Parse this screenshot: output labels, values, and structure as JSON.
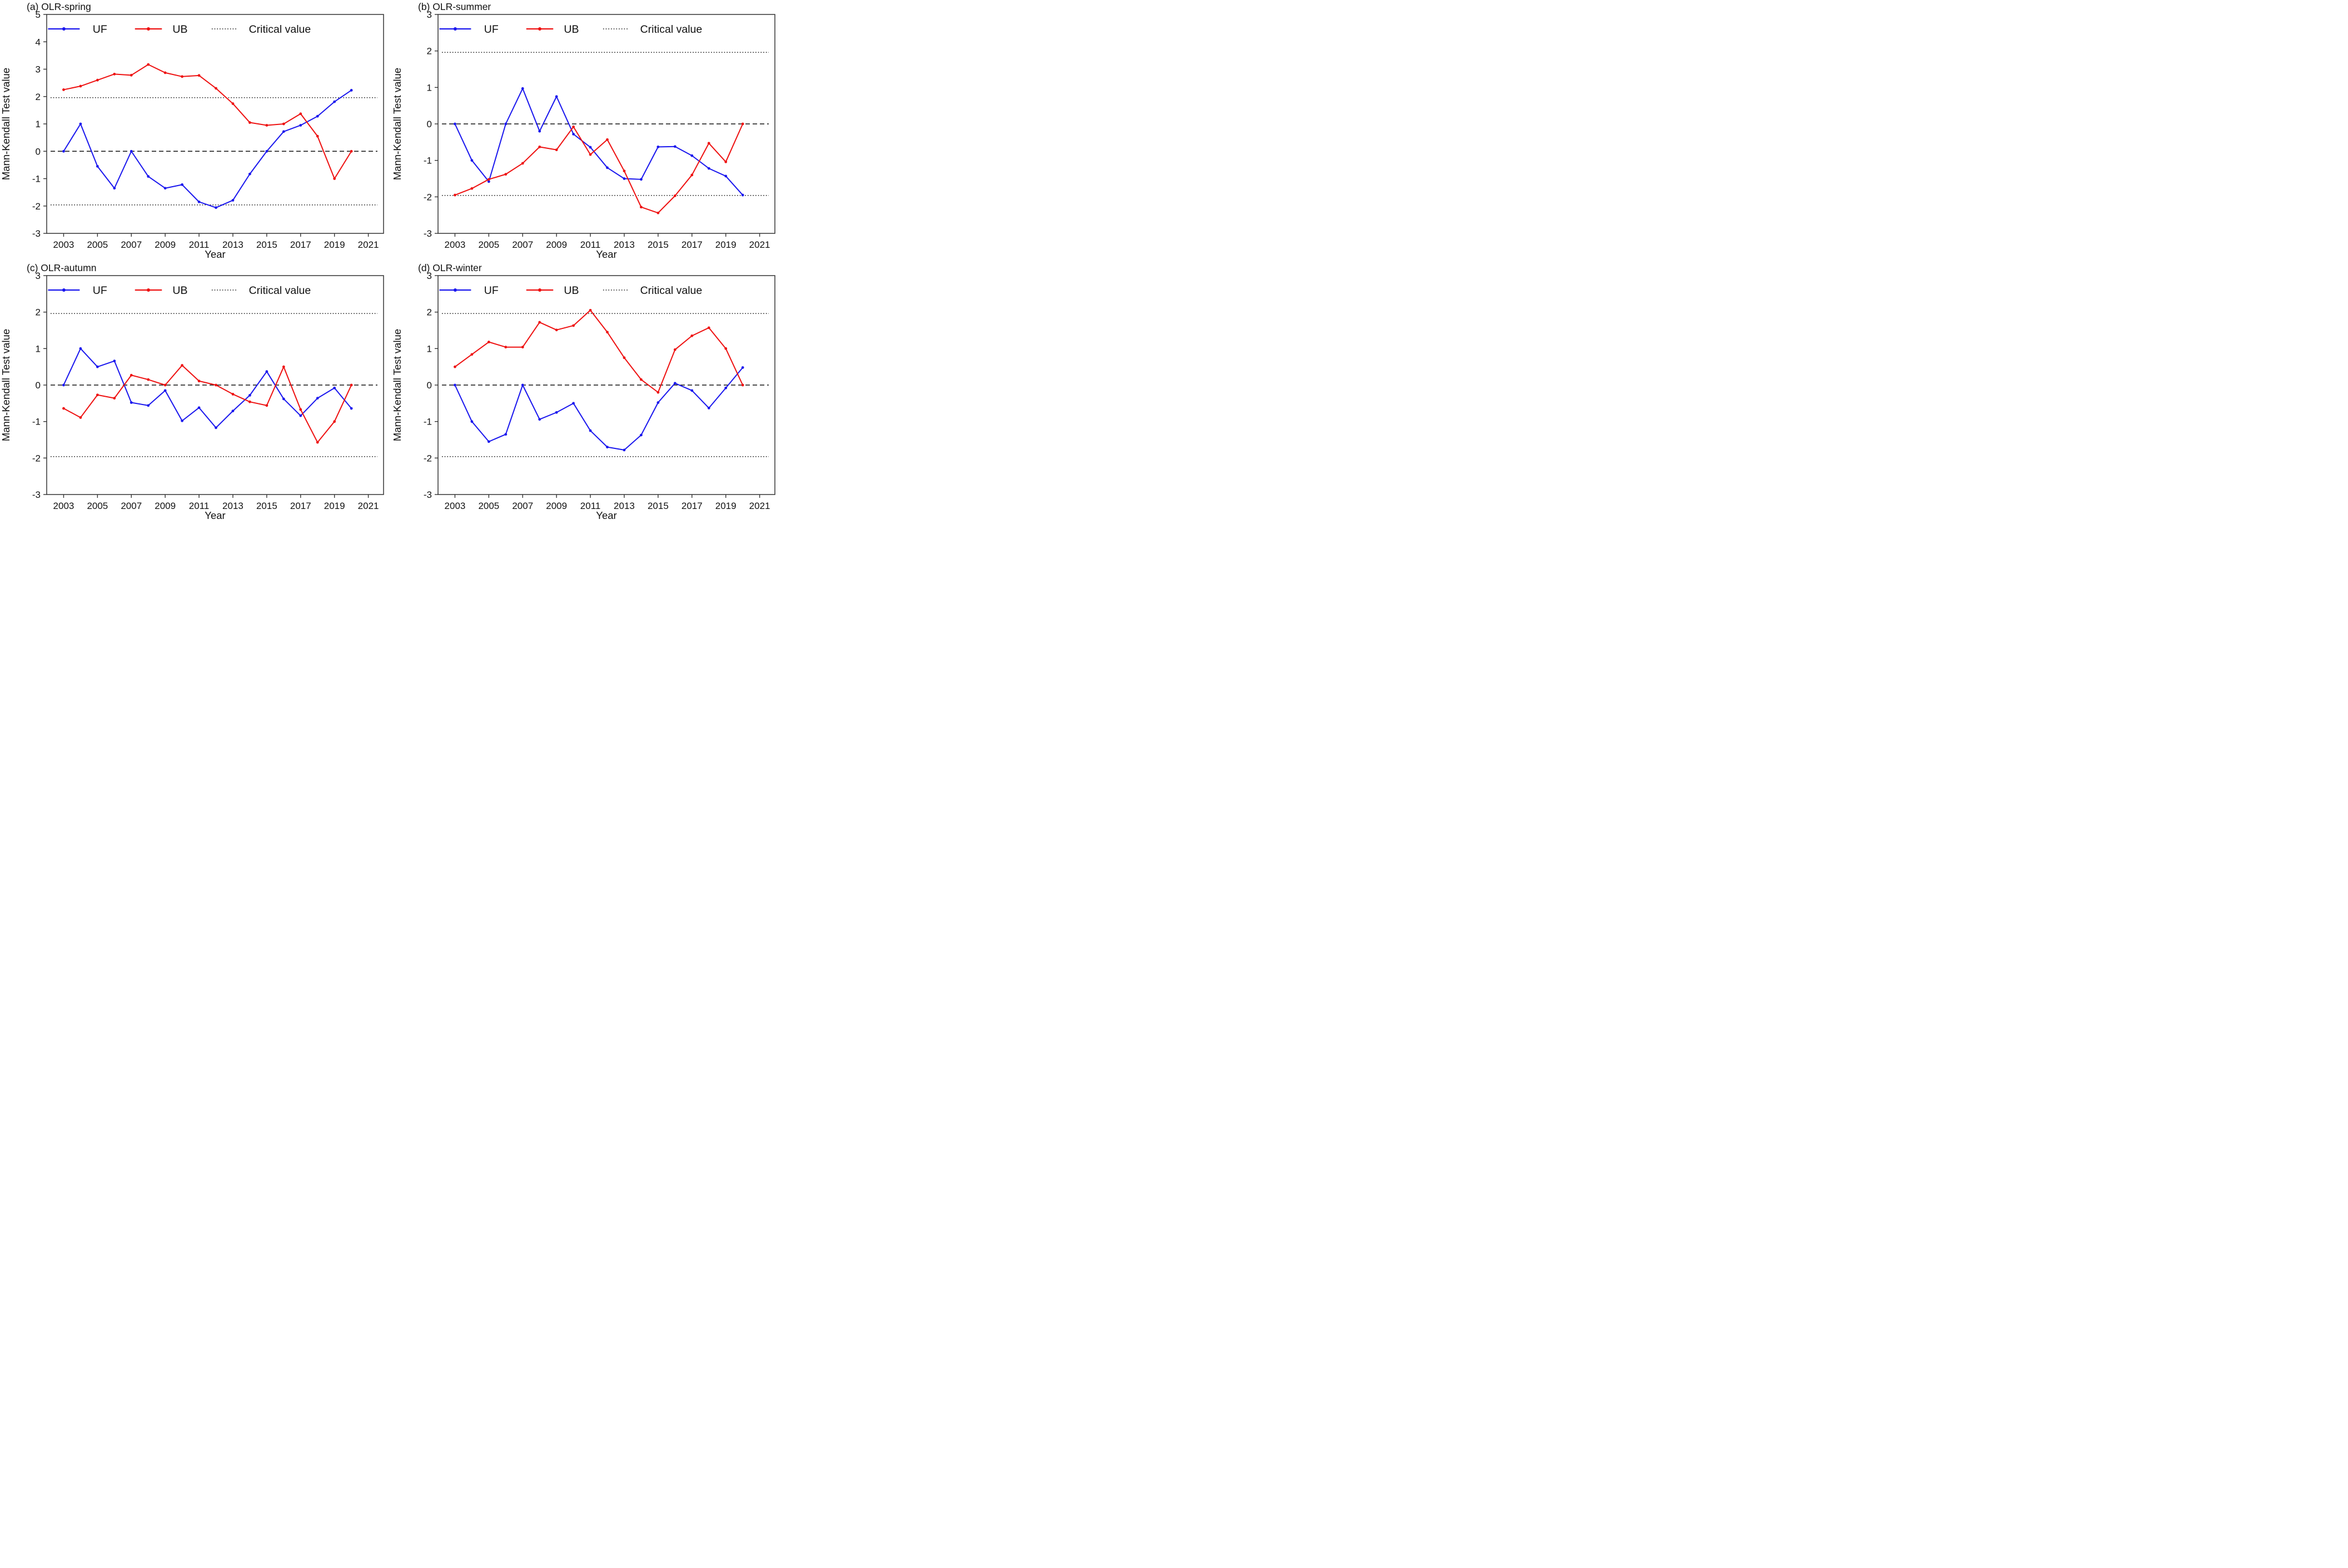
{
  "figure": {
    "xlabel": "Year",
    "ylabel": "Mann-Kendall Test value"
  },
  "legend": {
    "items": [
      {
        "label": "UF",
        "color": "#1a17ee",
        "style": "solid-marker"
      },
      {
        "label": "UB",
        "color": "#ee1111",
        "style": "solid-marker"
      },
      {
        "label": "Critical value",
        "color": "#222222",
        "style": "dotted"
      }
    ]
  },
  "chart_data": [
    {
      "type": "line",
      "title": "(a) OLR-spring",
      "xlabel": "Year",
      "ylabel": "Mann-Kendall Test value",
      "x": [
        2003,
        2004,
        2005,
        2006,
        2007,
        2008,
        2009,
        2010,
        2011,
        2012,
        2013,
        2014,
        2015,
        2016,
        2017,
        2018,
        2019,
        2020
      ],
      "xticks": [
        2003,
        2005,
        2007,
        2009,
        2011,
        2013,
        2015,
        2017,
        2019,
        2021
      ],
      "xlim": [
        2002,
        2021.9
      ],
      "ylim": [
        -3,
        5
      ],
      "yticks": [
        -3,
        -2,
        -1,
        0,
        1,
        2,
        3,
        4,
        5
      ],
      "critical_value": 1.96,
      "zero_line": 0,
      "grid": false,
      "legend_position": "top-inside",
      "series": [
        {
          "name": "UF",
          "color": "#1a17ee",
          "values": [
            0,
            1.0,
            -0.55,
            -1.35,
            0,
            -0.92,
            -1.35,
            -1.22,
            -1.85,
            -2.06,
            -1.79,
            -0.83,
            0.0,
            0.72,
            0.95,
            1.28,
            1.81,
            2.23
          ]
        },
        {
          "name": "UB",
          "color": "#ee1111",
          "values": [
            2.25,
            2.38,
            2.6,
            2.82,
            2.78,
            3.17,
            2.87,
            2.73,
            2.77,
            2.3,
            1.74,
            1.05,
            0.95,
            1.0,
            1.37,
            0.55,
            -1.0,
            0.0
          ]
        }
      ]
    },
    {
      "type": "line",
      "title": "(b) OLR-summer",
      "xlabel": "Year",
      "ylabel": "Mann-Kendall Test value",
      "x": [
        2003,
        2004,
        2005,
        2006,
        2007,
        2008,
        2009,
        2010,
        2011,
        2012,
        2013,
        2014,
        2015,
        2016,
        2017,
        2018,
        2019,
        2020
      ],
      "xticks": [
        2003,
        2005,
        2007,
        2009,
        2011,
        2013,
        2015,
        2017,
        2019,
        2021
      ],
      "xlim": [
        2002,
        2021.9
      ],
      "ylim": [
        -3,
        3
      ],
      "yticks": [
        -3,
        -2,
        -1,
        0,
        1,
        2,
        3
      ],
      "critical_value": 1.96,
      "zero_line": 0,
      "grid": false,
      "legend_position": "top-inside",
      "series": [
        {
          "name": "UF",
          "color": "#1a17ee",
          "values": [
            0,
            -1.0,
            -1.58,
            0,
            0.97,
            -0.2,
            0.75,
            -0.28,
            -0.64,
            -1.2,
            -1.5,
            -1.52,
            -0.63,
            -0.62,
            -0.87,
            -1.22,
            -1.43,
            -1.95
          ]
        },
        {
          "name": "UB",
          "color": "#ee1111",
          "values": [
            -1.95,
            -1.77,
            -1.52,
            -1.38,
            -1.08,
            -0.63,
            -0.71,
            -0.08,
            -0.84,
            -0.43,
            -1.29,
            -2.28,
            -2.44,
            -1.97,
            -1.4,
            -0.53,
            -1.04,
            0.0
          ]
        }
      ]
    },
    {
      "type": "line",
      "title": "(c) OLR-autumn",
      "xlabel": "Year",
      "ylabel": "Mann-Kendall Test value",
      "x": [
        2003,
        2004,
        2005,
        2006,
        2007,
        2008,
        2009,
        2010,
        2011,
        2012,
        2013,
        2014,
        2015,
        2016,
        2017,
        2018,
        2019,
        2020
      ],
      "xticks": [
        2003,
        2005,
        2007,
        2009,
        2011,
        2013,
        2015,
        2017,
        2019,
        2021
      ],
      "xlim": [
        2002,
        2021.9
      ],
      "ylim": [
        -3,
        3
      ],
      "yticks": [
        -3,
        -2,
        -1,
        0,
        1,
        2,
        3
      ],
      "critical_value": 1.96,
      "zero_line": 0,
      "grid": false,
      "legend_position": "top-inside",
      "series": [
        {
          "name": "UF",
          "color": "#1a17ee",
          "values": [
            0,
            1.0,
            0.5,
            0.66,
            -0.48,
            -0.56,
            -0.15,
            -0.98,
            -0.62,
            -1.17,
            -0.71,
            -0.28,
            0.37,
            -0.38,
            -0.84,
            -0.36,
            -0.08,
            -0.64
          ]
        },
        {
          "name": "UB",
          "color": "#ee1111",
          "values": [
            -0.64,
            -0.89,
            -0.27,
            -0.36,
            0.27,
            0.15,
            0.0,
            0.54,
            0.11,
            0.0,
            -0.25,
            -0.46,
            -0.56,
            0.5,
            -0.67,
            -1.57,
            -1.0,
            0.0
          ]
        }
      ]
    },
    {
      "type": "line",
      "title": "(d) OLR-winter",
      "xlabel": "Year",
      "ylabel": "Mann-Kendall Test value",
      "x": [
        2003,
        2004,
        2005,
        2006,
        2007,
        2008,
        2009,
        2010,
        2011,
        2012,
        2013,
        2014,
        2015,
        2016,
        2017,
        2018,
        2019,
        2020
      ],
      "xticks": [
        2003,
        2005,
        2007,
        2009,
        2011,
        2013,
        2015,
        2017,
        2019,
        2021
      ],
      "xlim": [
        2002,
        2021.9
      ],
      "ylim": [
        -3,
        3
      ],
      "yticks": [
        -3,
        -2,
        -1,
        0,
        1,
        2,
        3
      ],
      "critical_value": 1.96,
      "zero_line": 0,
      "grid": false,
      "legend_position": "top-inside",
      "series": [
        {
          "name": "UF",
          "color": "#1a17ee",
          "values": [
            0,
            -1.0,
            -1.55,
            -1.35,
            0,
            -0.94,
            -0.75,
            -0.5,
            -1.25,
            -1.7,
            -1.78,
            -1.37,
            -0.48,
            0.05,
            -0.15,
            -0.63,
            -0.08,
            0.48
          ]
        },
        {
          "name": "UB",
          "color": "#ee1111",
          "values": [
            0.5,
            0.84,
            1.18,
            1.04,
            1.04,
            1.72,
            1.51,
            1.63,
            2.05,
            1.45,
            0.75,
            0.15,
            -0.2,
            0.97,
            1.35,
            1.57,
            1.0,
            0.0
          ]
        }
      ]
    }
  ]
}
